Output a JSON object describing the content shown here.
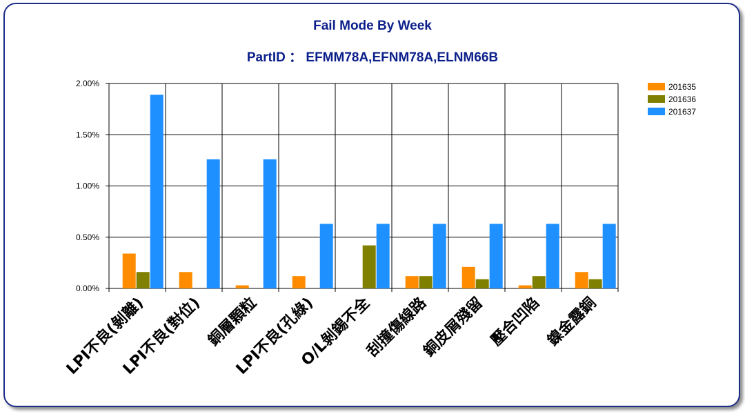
{
  "chart_data": {
    "type": "bar",
    "title": "Fail Mode By Week",
    "subtitle": "PartID ： EFMM78A,EFNM78A,ELNM66B",
    "categories": [
      "LPI不良(剝離)",
      "LPI不良(對位)",
      "銅層顆粒",
      "LPI不良(孔綠)",
      "O/L剝錫不全",
      "刮撞傷線路",
      "銅皮屑殘留",
      "壓合凹陷",
      "鎳金露銅"
    ],
    "series": [
      {
        "name": "201635",
        "color": "#FF8C00",
        "values": [
          0.34,
          0.16,
          0.03,
          0.12,
          0.0,
          0.12,
          0.21,
          0.03,
          0.16
        ]
      },
      {
        "name": "201636",
        "color": "#808000",
        "values": [
          0.16,
          0.0,
          0.0,
          0.0,
          0.42,
          0.12,
          0.09,
          0.12,
          0.09
        ]
      },
      {
        "name": "201637",
        "color": "#1E90FF",
        "values": [
          1.89,
          1.26,
          1.26,
          0.63,
          0.63,
          0.63,
          0.63,
          0.63,
          0.63
        ]
      }
    ],
    "value_unit": "%",
    "ylim": [
      0,
      2.0
    ],
    "yticks": [
      "0.00%",
      "0.50%",
      "1.00%",
      "1.50%",
      "2.00%"
    ],
    "grid": true,
    "legend_position": "top-right"
  }
}
